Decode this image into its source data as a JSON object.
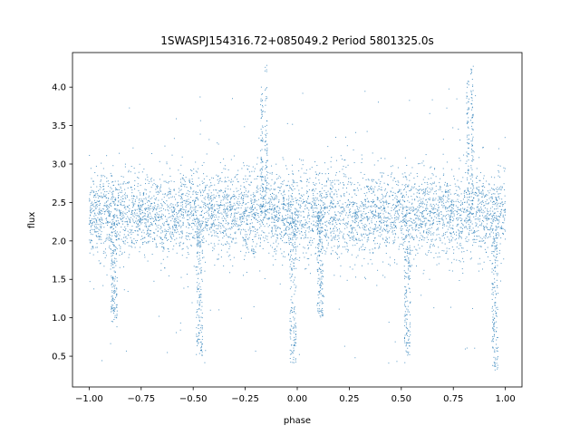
{
  "chart_data": {
    "type": "scatter",
    "title": "1SWASPJ154316.72+085049.2 Period 5801325.0s",
    "xlabel": "phase",
    "ylabel": "flux",
    "xlim": [
      -1.08,
      1.08
    ],
    "ylim": [
      0.1,
      4.45
    ],
    "x_ticks": [
      -1.0,
      -0.75,
      -0.5,
      -0.25,
      0.0,
      0.25,
      0.5,
      0.75,
      1.0
    ],
    "x_tick_labels": [
      "−1.00",
      "−0.75",
      "−0.50",
      "−0.25",
      "0.00",
      "0.25",
      "0.50",
      "0.75",
      "1.00"
    ],
    "y_ticks": [
      0.5,
      1.0,
      1.5,
      2.0,
      2.5,
      3.0,
      3.5,
      4.0
    ],
    "y_tick_labels": [
      "0.5",
      "1.0",
      "1.5",
      "2.0",
      "2.5",
      "3.0",
      "3.5",
      "4.0"
    ],
    "grid": false,
    "marker_color": "#1f77b4",
    "phase_range": [
      -1.0,
      1.0
    ],
    "baseline_flux": 2.35,
    "typical_scatter": [
      1.7,
      3.0
    ],
    "dip_phases": [
      -0.88,
      -0.47,
      -0.02,
      0.11,
      0.53,
      0.95
    ],
    "dip_min_flux": [
      0.95,
      0.5,
      0.4,
      1.0,
      0.5,
      0.3
    ],
    "spike_phases": [
      -0.15,
      -0.17,
      0.84,
      0.82
    ],
    "spike_max_flux": [
      4.3,
      4.0,
      4.3,
      4.1
    ]
  }
}
